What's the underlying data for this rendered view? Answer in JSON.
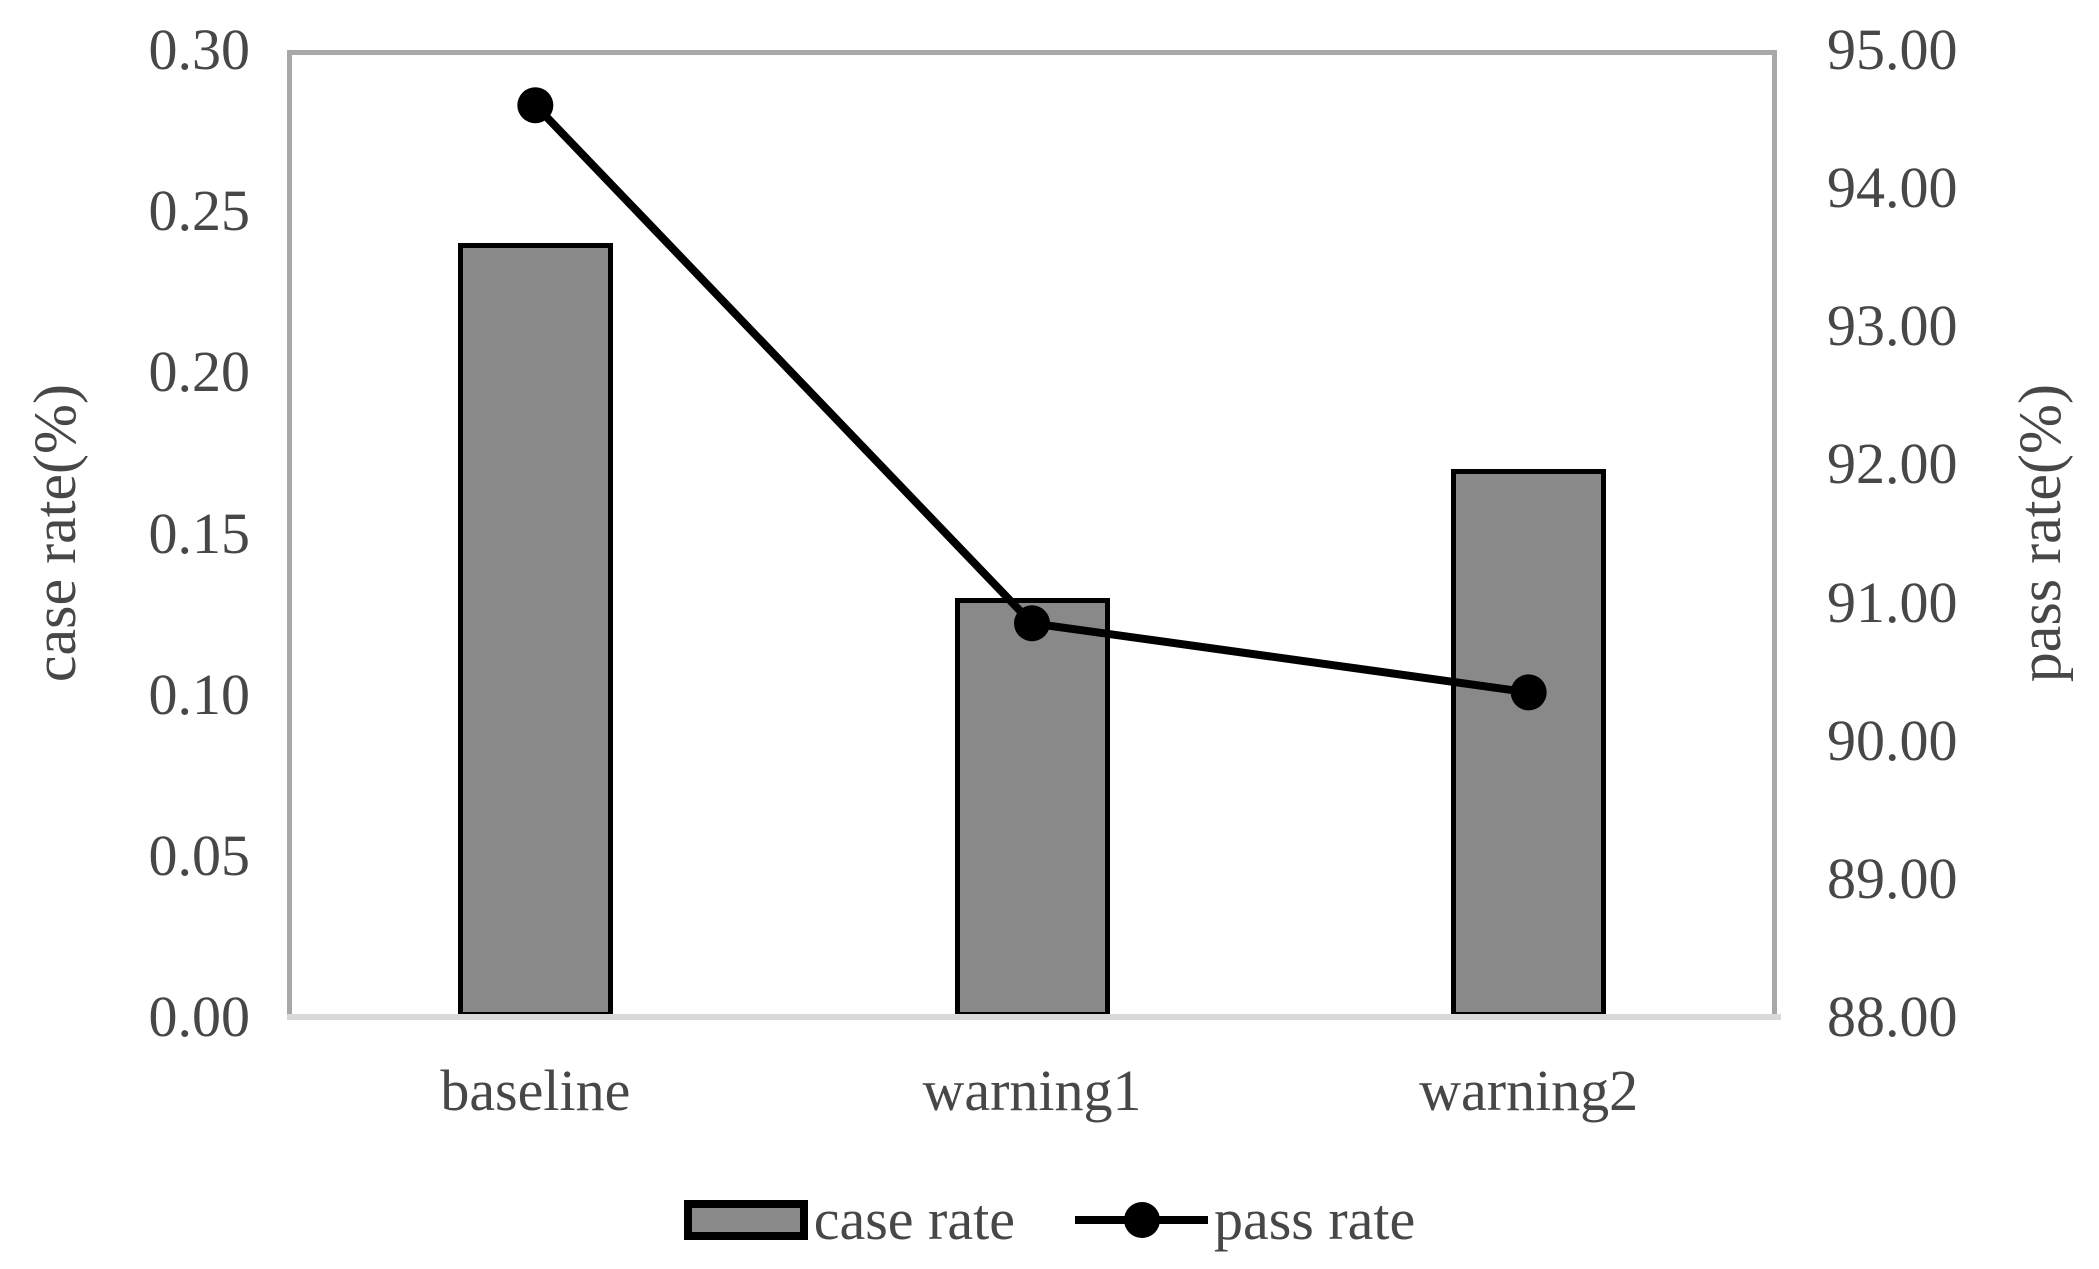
{
  "chart_data": {
    "type": "combo_bar_line",
    "categories": [
      "baseline",
      "warning1",
      "warning2"
    ],
    "series": [
      {
        "name": "case rate",
        "type": "bar",
        "axis": "left",
        "values": [
          0.24,
          0.13,
          0.17
        ],
        "fill": "#898989",
        "stroke": "#000000"
      },
      {
        "name": "pass rate",
        "type": "line",
        "axis": "right",
        "values": [
          94.6,
          90.85,
          90.35
        ],
        "stroke": "#000000",
        "marker": "filled-circle"
      }
    ],
    "left_axis": {
      "title": "case rate(%)",
      "min": 0.0,
      "max": 0.3,
      "tick_step": 0.05,
      "ticks": [
        "0.00",
        "0.05",
        "0.10",
        "0.15",
        "0.20",
        "0.25",
        "0.30"
      ]
    },
    "right_axis": {
      "title": "pass rate(%)",
      "min": 88,
      "max": 95,
      "tick_step": 1,
      "ticks": [
        "88.00",
        "89.00",
        "90.00",
        "91.00",
        "92.00",
        "93.00",
        "94.00",
        "95.00"
      ]
    },
    "legend": {
      "position": "bottom",
      "entries": [
        "case rate",
        "pass rate"
      ]
    },
    "grid": false,
    "plot_border_color": "#A8A8A8",
    "axis_line_color": "#D9D9D9",
    "text_color": "#474747",
    "background": "#FFFFFF"
  }
}
